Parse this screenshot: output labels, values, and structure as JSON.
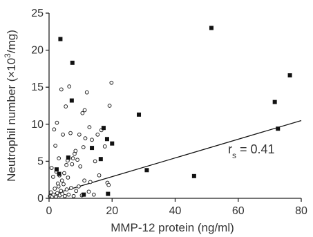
{
  "chart_data": {
    "type": "scatter",
    "xlabel": "MMP-12 protein (ng/ml)",
    "ylabel_parts": {
      "main": "Neutrophil number (×10",
      "sup": "3",
      "tail": "/mg)"
    },
    "xlim": [
      0,
      80
    ],
    "ylim": [
      0,
      25
    ],
    "xticks": [
      0,
      20,
      40,
      60,
      80
    ],
    "yticks": [
      0,
      5,
      10,
      15,
      20,
      25
    ],
    "grid": false,
    "annotation": {
      "prefix": "r",
      "sub": "s",
      "suffix": " = 0.41"
    },
    "fit_line": {
      "x": [
        0,
        80
      ],
      "y": [
        0.4,
        10.5
      ]
    },
    "series": [
      {
        "marker": "open-circle",
        "points": [
          [
            0.3,
            0.3
          ],
          [
            0.6,
            0.8
          ],
          [
            1.0,
            0.2
          ],
          [
            1.4,
            0.5
          ],
          [
            1.8,
            1.3
          ],
          [
            2.2,
            0.2
          ],
          [
            2.6,
            0.7
          ],
          [
            3.0,
            1.6
          ],
          [
            3.4,
            0.4
          ],
          [
            3.8,
            1.0
          ],
          [
            4.2,
            0.6
          ],
          [
            4.6,
            1.9
          ],
          [
            5.0,
            0.3
          ],
          [
            5.6,
            1.2
          ],
          [
            6.2,
            0.5
          ],
          [
            7.0,
            1.4
          ],
          [
            7.8,
            0.3
          ],
          [
            8.6,
            1.0
          ],
          [
            9.4,
            1.6
          ],
          [
            10.4,
            0.4
          ],
          [
            11.2,
            2.4
          ],
          [
            12.6,
            0.9
          ],
          [
            14.2,
            0.5
          ],
          [
            0.8,
            4.1
          ],
          [
            1.3,
            2.9
          ],
          [
            1.6,
            9.3
          ],
          [
            2.3,
            3.6
          ],
          [
            2.8,
            2.0
          ],
          [
            3.3,
            3.1
          ],
          [
            4.1,
            2.4
          ],
          [
            4.8,
            3.4
          ],
          [
            5.3,
            12.4
          ],
          [
            5.9,
            5.1
          ],
          [
            6.4,
            15.1
          ],
          [
            7.3,
            4.6
          ],
          [
            8.1,
            6.0
          ],
          [
            9.0,
            5.2
          ],
          [
            9.6,
            8.6
          ],
          [
            10.6,
            11.5
          ],
          [
            11.3,
            11.9
          ],
          [
            12.0,
            14.3
          ],
          [
            12.8,
            9.6
          ],
          [
            13.6,
            7.9
          ],
          [
            14.6,
            5.0
          ],
          [
            15.4,
            8.6
          ],
          [
            16.6,
            9.2
          ],
          [
            17.7,
            7.0
          ],
          [
            18.5,
            2.1
          ],
          [
            19.2,
            12.5
          ],
          [
            19.8,
            15.6
          ],
          [
            3.9,
            14.7
          ],
          [
            2.0,
            7.1
          ],
          [
            4.4,
            8.6
          ],
          [
            6.8,
            8.8
          ],
          [
            8.4,
            6.4
          ],
          [
            10.9,
            6.9
          ],
          [
            11.5,
            8.1
          ],
          [
            3.1,
            5.4
          ],
          [
            5.5,
            4.5
          ],
          [
            7.6,
            5.4
          ],
          [
            13.1,
            2.2
          ],
          [
            15.9,
            3.1
          ],
          [
            9.9,
            4.3
          ],
          [
            6.0,
            2.8
          ],
          [
            2.5,
            10.2
          ],
          [
            18.9,
            1.8
          ]
        ]
      },
      {
        "marker": "filled-square",
        "points": [
          [
            3.6,
            21.5
          ],
          [
            7.4,
            18.3
          ],
          [
            7.2,
            13.2
          ],
          [
            2.4,
            3.9
          ],
          [
            3.2,
            3.3
          ],
          [
            6.1,
            5.5
          ],
          [
            11.0,
            0.5
          ],
          [
            13.6,
            6.8
          ],
          [
            16.4,
            5.3
          ],
          [
            17.3,
            9.5
          ],
          [
            18.4,
            8.0
          ],
          [
            18.7,
            0.6
          ],
          [
            20.0,
            7.4
          ],
          [
            28.5,
            11.3
          ],
          [
            31.0,
            3.8
          ],
          [
            46.0,
            3.0
          ],
          [
            51.5,
            23.0
          ],
          [
            71.6,
            13.0
          ],
          [
            72.6,
            9.4
          ],
          [
            76.4,
            16.6
          ]
        ]
      }
    ]
  }
}
